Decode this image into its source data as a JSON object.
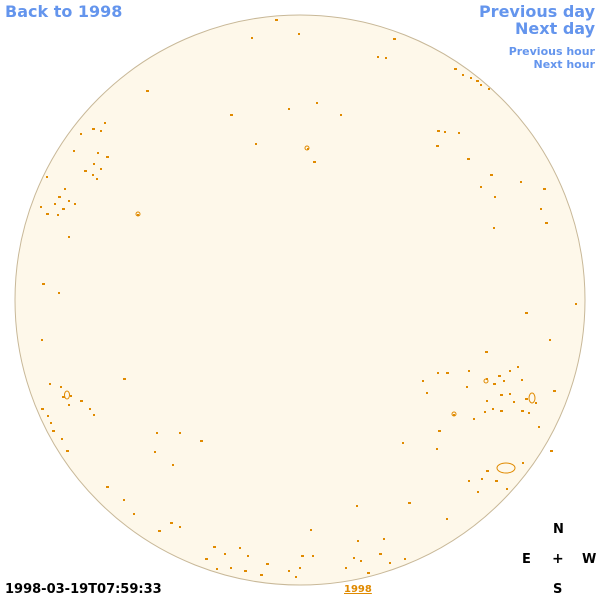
{
  "nav": {
    "back_label": "Back to 1998",
    "previous_day_label": "Previous day",
    "next_day_label": "Next day",
    "previous_hour_label": "Previous hour",
    "next_hour_label": "Next hour"
  },
  "solar_disk": {
    "disk_fill": "#fef8ea",
    "disk_border": "#c8b898",
    "contour_color": "#e08a00"
  },
  "compass": {
    "north": "N",
    "east": "E",
    "center": "+",
    "west": "W",
    "south": "S"
  },
  "footer": {
    "timestamp": "1998-03-19T07:59:33",
    "year_link": "1998"
  },
  "colors": {
    "link_blue": "#6495ed",
    "accent_orange": "#e08a00"
  }
}
